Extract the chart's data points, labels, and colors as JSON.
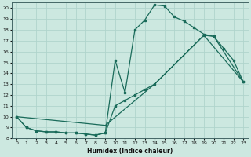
{
  "xlabel": "Humidex (Indice chaleur)",
  "background_color": "#cce8e0",
  "grid_color": "#b0d4cc",
  "line_color": "#1a6b5a",
  "xlim": [
    -0.5,
    23.5
  ],
  "ylim": [
    8,
    20.5
  ],
  "xticks": [
    0,
    1,
    2,
    3,
    4,
    5,
    6,
    7,
    8,
    9,
    10,
    11,
    12,
    13,
    14,
    15,
    16,
    17,
    18,
    19,
    20,
    21,
    22,
    23
  ],
  "yticks": [
    8,
    9,
    10,
    11,
    12,
    13,
    14,
    15,
    16,
    17,
    18,
    19,
    20
  ],
  "line1_x": [
    0,
    1,
    2,
    3,
    4,
    5,
    6,
    7,
    8,
    9,
    10,
    11,
    12,
    13,
    14,
    15,
    16,
    17,
    18,
    19,
    20,
    21,
    22,
    23
  ],
  "line1_y": [
    10,
    9,
    8.7,
    8.6,
    8.6,
    8.5,
    8.5,
    8.4,
    8.3,
    8.5,
    15.2,
    12.2,
    18.0,
    18.9,
    20.3,
    20.2,
    19.2,
    18.8,
    18.2,
    17.6,
    17.4,
    16.3,
    15.2,
    13.2
  ],
  "line2_x": [
    0,
    1,
    2,
    3,
    4,
    5,
    6,
    7,
    8,
    9,
    10,
    11,
    12,
    13,
    14,
    19,
    20,
    23
  ],
  "line2_y": [
    10,
    9,
    8.7,
    8.6,
    8.6,
    8.5,
    8.5,
    8.4,
    8.3,
    8.5,
    11.0,
    11.5,
    12.0,
    12.5,
    13.0,
    17.5,
    17.4,
    13.2
  ],
  "line3_x": [
    0,
    9,
    14,
    19,
    23
  ],
  "line3_y": [
    10,
    9.2,
    13.0,
    17.5,
    13.2
  ]
}
